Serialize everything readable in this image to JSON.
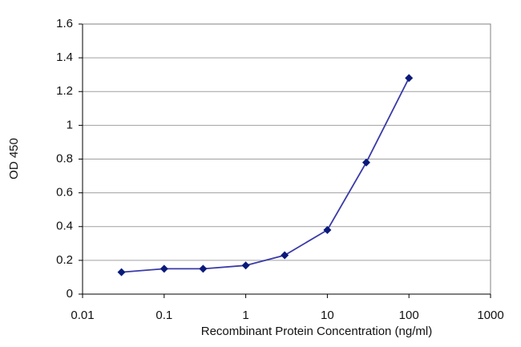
{
  "chart_data": {
    "type": "line",
    "x_label": "Recombinant Protein Concentration (ng/ml)",
    "y_label": "OD 450",
    "x": [
      0.03,
      0.1,
      0.3,
      1,
      3,
      10,
      30,
      100
    ],
    "series": [
      {
        "name": "OD 450",
        "color": "#3a3aa8",
        "marker_color": "#0a1a7a",
        "values": [
          0.13,
          0.15,
          0.15,
          0.17,
          0.23,
          0.38,
          0.78,
          1.28
        ]
      }
    ],
    "xscale": "log",
    "xlim": [
      0.01,
      1000
    ],
    "xticks": [
      0.01,
      0.1,
      1,
      10,
      100,
      1000
    ],
    "ylim": [
      0,
      1.6
    ],
    "yticks": [
      0,
      0.2,
      0.4,
      0.6,
      0.8,
      1,
      1.2,
      1.4,
      1.6
    ],
    "grid": true
  }
}
